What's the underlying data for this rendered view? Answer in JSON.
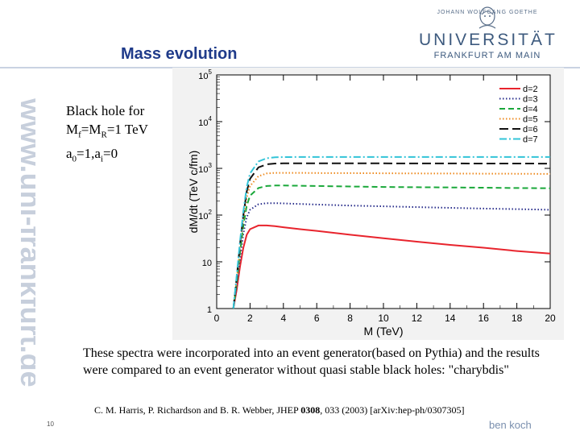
{
  "watermark_text": "www.uni-frankfurt.de",
  "logo": {
    "line1": "JOHANN WOLFGANG GOETHE",
    "line2": "UNIVERSITÄT",
    "line3": "FRANKFURT AM MAIN"
  },
  "title": "Mass evolution",
  "description": {
    "line1": "Black hole for",
    "line2_a": "M",
    "line2_sub1": "f",
    "line2_b": "=M",
    "line2_sub2": "R",
    "line2_c": "=1 TeV",
    "line3_a": "a",
    "line3_sub1": "0",
    "line3_b": "=1,a",
    "line3_sub2": "i",
    "line3_c": "=0"
  },
  "body_text": "These spectra were incorporated into an event generator(based on Pythia) and the results were compared to an event generator without quasi stable black holes: \"charybdis\"",
  "reference": {
    "prefix": "C. M. Harris, P. Richardson and B. R. Webber, JHEP ",
    "volume": "0308",
    "suffix": ", 033 (2003) [arXiv:hep-ph/0307305]"
  },
  "page_number": "10",
  "author": "ben koch",
  "chart_data": {
    "type": "line",
    "xlabel": "M (TeV)",
    "ylabel": "dM/dt (TeV c/fm)",
    "xlim": [
      0,
      20
    ],
    "ylim": [
      1,
      100000
    ],
    "yscale": "log",
    "xticks": [
      "0",
      "2",
      "4",
      "6",
      "8",
      "10",
      "12",
      "14",
      "16",
      "18",
      "20"
    ],
    "yticks": [
      {
        "base": "1",
        "exp": ""
      },
      {
        "base": "10",
        "exp": ""
      },
      {
        "base": "10",
        "exp": "2"
      },
      {
        "base": "10",
        "exp": "3"
      },
      {
        "base": "10",
        "exp": "4"
      },
      {
        "base": "10",
        "exp": "5"
      }
    ],
    "legend_position": "top-right",
    "x": [
      1.0,
      1.2,
      1.4,
      1.6,
      1.8,
      2.0,
      2.5,
      3.0,
      3.5,
      4,
      5,
      6,
      8,
      10,
      12,
      14,
      16,
      18,
      20
    ],
    "series": [
      {
        "name": "d=2",
        "color": "#e8242d",
        "dash": "solid",
        "values": [
          1,
          2.5,
          8,
          20,
          38,
          50,
          60,
          60,
          58,
          55,
          50,
          46,
          38,
          32,
          27,
          23,
          20,
          17,
          15
        ]
      },
      {
        "name": "d=3",
        "color": "#2a2f8c",
        "dash": "dot",
        "values": [
          1,
          3,
          12,
          40,
          90,
          130,
          170,
          180,
          180,
          178,
          173,
          168,
          160,
          154,
          148,
          143,
          138,
          134,
          130
        ]
      },
      {
        "name": "d=4",
        "color": "#1aa83a",
        "dash": "dash",
        "values": [
          1,
          3.5,
          16,
          60,
          160,
          260,
          380,
          420,
          430,
          430,
          425,
          420,
          410,
          400,
          395,
          390,
          385,
          380,
          375
        ]
      },
      {
        "name": "d=5",
        "color": "#ee8a1f",
        "dash": "dot",
        "values": [
          1,
          4,
          20,
          80,
          240,
          420,
          680,
          780,
          800,
          800,
          800,
          795,
          790,
          785,
          780,
          775,
          770,
          765,
          760
        ]
      },
      {
        "name": "d=6",
        "color": "#111111",
        "dash": "longdash",
        "values": [
          1,
          4.5,
          24,
          100,
          320,
          600,
          1050,
          1220,
          1270,
          1280,
          1285,
          1285,
          1280,
          1278,
          1275,
          1272,
          1270,
          1268,
          1265
        ]
      },
      {
        "name": "d=7",
        "color": "#33c4d8",
        "dash": "dashdot",
        "values": [
          1,
          5,
          28,
          120,
          400,
          780,
          1400,
          1650,
          1720,
          1740,
          1750,
          1750,
          1750,
          1750,
          1750,
          1750,
          1750,
          1750,
          1750
        ]
      }
    ]
  }
}
